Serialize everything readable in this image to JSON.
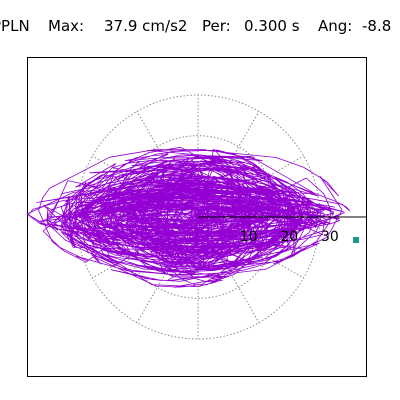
{
  "header": {
    "station": "PPLN",
    "max_label": "Max:",
    "max_value": "37.9 cm/s2",
    "per_label": "Per:",
    "per_value": "0.300 s",
    "ang_label": "Ang:",
    "ang_value": "-8.8"
  },
  "plot": {
    "grid_style": "dotted polar",
    "ring_labels": [
      "10",
      "20",
      "30"
    ],
    "trace_color": "#9400d3",
    "marker_color": "#1a9a83",
    "max_amplitude": 37.9,
    "direction_deg": -8.8
  }
}
